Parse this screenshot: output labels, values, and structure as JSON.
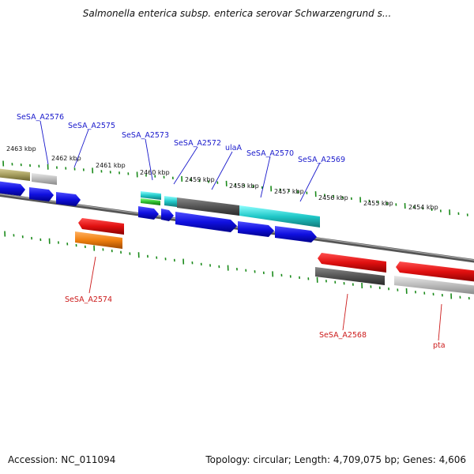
{
  "title": "Salmonella enterica subsp. enterica serovar Schwarzengrund s...",
  "accession": "Accession: NC_011094",
  "summary": "Topology: circular; Length: 4,709,075 bp; Genes: 4,606",
  "ticks": [
    "2463 kbp",
    "2462 kbp",
    "2461 kbp",
    "2460 kbp",
    "2459 kbp",
    "2458 kbp",
    "2457 kbp",
    "2456 kbp",
    "2455 kbp",
    "2454 kbp"
  ],
  "genes_top": [
    "SeSA_A2576",
    "SeSA_A2575",
    "SeSA_A2573",
    "SeSA_A2572",
    "ulaA",
    "SeSA_A2570",
    "SeSA_A2569"
  ],
  "genes_bottom": [
    "SeSA_A2574",
    "SeSA_A2568",
    "pta"
  ],
  "colors": {
    "cds": "#1010e0",
    "forward_cds": "#e01010",
    "cyan": "#20c8c8",
    "gray": "#555555",
    "light_gray": "#bbbbbb",
    "olive": "#a8a060",
    "orange": "#f08010",
    "green": "#30c030",
    "backbone": "#777777",
    "tick": "#1a8a1a"
  }
}
